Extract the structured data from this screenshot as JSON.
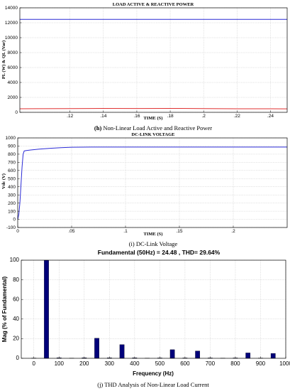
{
  "chart_data": [
    {
      "type": "line",
      "title": "LOAD ACTIVE & REACTIVE POWER",
      "xlabel": "TIME (S)",
      "ylabel": "PL (W) & QL (Var)",
      "xlim": [
        0.09,
        0.25
      ],
      "ylim": [
        0,
        14000
      ],
      "xticks": [
        0.12,
        0.14,
        0.16,
        0.18,
        0.2,
        0.22,
        0.24
      ],
      "yticks": [
        0,
        2000,
        4000,
        6000,
        8000,
        10000,
        12000,
        14000
      ],
      "grid": true,
      "series": [
        {
          "color": "#2b2bd6",
          "x": [
            0.09,
            0.25
          ],
          "y": [
            12450,
            12450
          ]
        },
        {
          "color": "#e03030",
          "x": [
            0.09,
            0.1,
            0.12,
            0.14,
            0.16,
            0.18,
            0.2,
            0.22,
            0.24,
            0.25
          ],
          "y": [
            480,
            490,
            500,
            520,
            510,
            530,
            500,
            470,
            470,
            460
          ]
        }
      ],
      "caption_label": "(h)",
      "caption_text": " Non-Linear Load Active and Reactive Power"
    },
    {
      "type": "line",
      "title": "DC-LINK VOLTAGE",
      "xlabel": "TIME (S)",
      "ylabel": "Vdc (V)",
      "xlim": [
        0,
        0.25
      ],
      "ylim": [
        -100,
        1000
      ],
      "xticks": [
        0,
        0.05,
        0.1,
        0.15,
        0.2
      ],
      "yticks": [
        -100,
        0,
        100,
        200,
        300,
        400,
        500,
        600,
        700,
        800,
        900,
        1000
      ],
      "grid": true,
      "series": [
        {
          "color": "#2b2bd6",
          "x": [
            0,
            0.001,
            0.002,
            0.003,
            0.004,
            0.005,
            0.006,
            0.008,
            0.012,
            0.02,
            0.03,
            0.04,
            0.05,
            0.07,
            0.1,
            0.15,
            0.2,
            0.25
          ],
          "y": [
            0,
            60,
            200,
            420,
            640,
            800,
            840,
            845,
            852,
            862,
            872,
            880,
            885,
            888,
            888,
            888,
            888,
            888
          ]
        }
      ],
      "caption_text": "(i) DC-Link Voltage"
    },
    {
      "type": "bar",
      "title": "Fundamental (50Hz) = 24.48 , THD= 29.64%",
      "xlabel": "Frequency (Hz)",
      "ylabel": "Mag (% of Fundamental)",
      "xlim": [
        -50,
        1000
      ],
      "ylim": [
        0,
        100
      ],
      "xticks": [
        0,
        100,
        200,
        300,
        400,
        500,
        600,
        700,
        800,
        900,
        1000
      ],
      "yticks": [
        0,
        20,
        40,
        60,
        80,
        100
      ],
      "grid": true,
      "color": "#00007a",
      "x": [
        0,
        50,
        100,
        150,
        200,
        250,
        300,
        350,
        400,
        450,
        500,
        550,
        600,
        650,
        700,
        750,
        800,
        850,
        900,
        950
      ],
      "values": [
        0.3,
        100,
        0.6,
        0.2,
        0.6,
        20.5,
        0.5,
        14,
        0.5,
        0.2,
        0.4,
        8.8,
        0.4,
        7.5,
        0.4,
        0.2,
        0.4,
        5.5,
        0.3,
        5
      ],
      "caption_text": "(j) THD Analysis of Non-Linear Load Current"
    }
  ]
}
